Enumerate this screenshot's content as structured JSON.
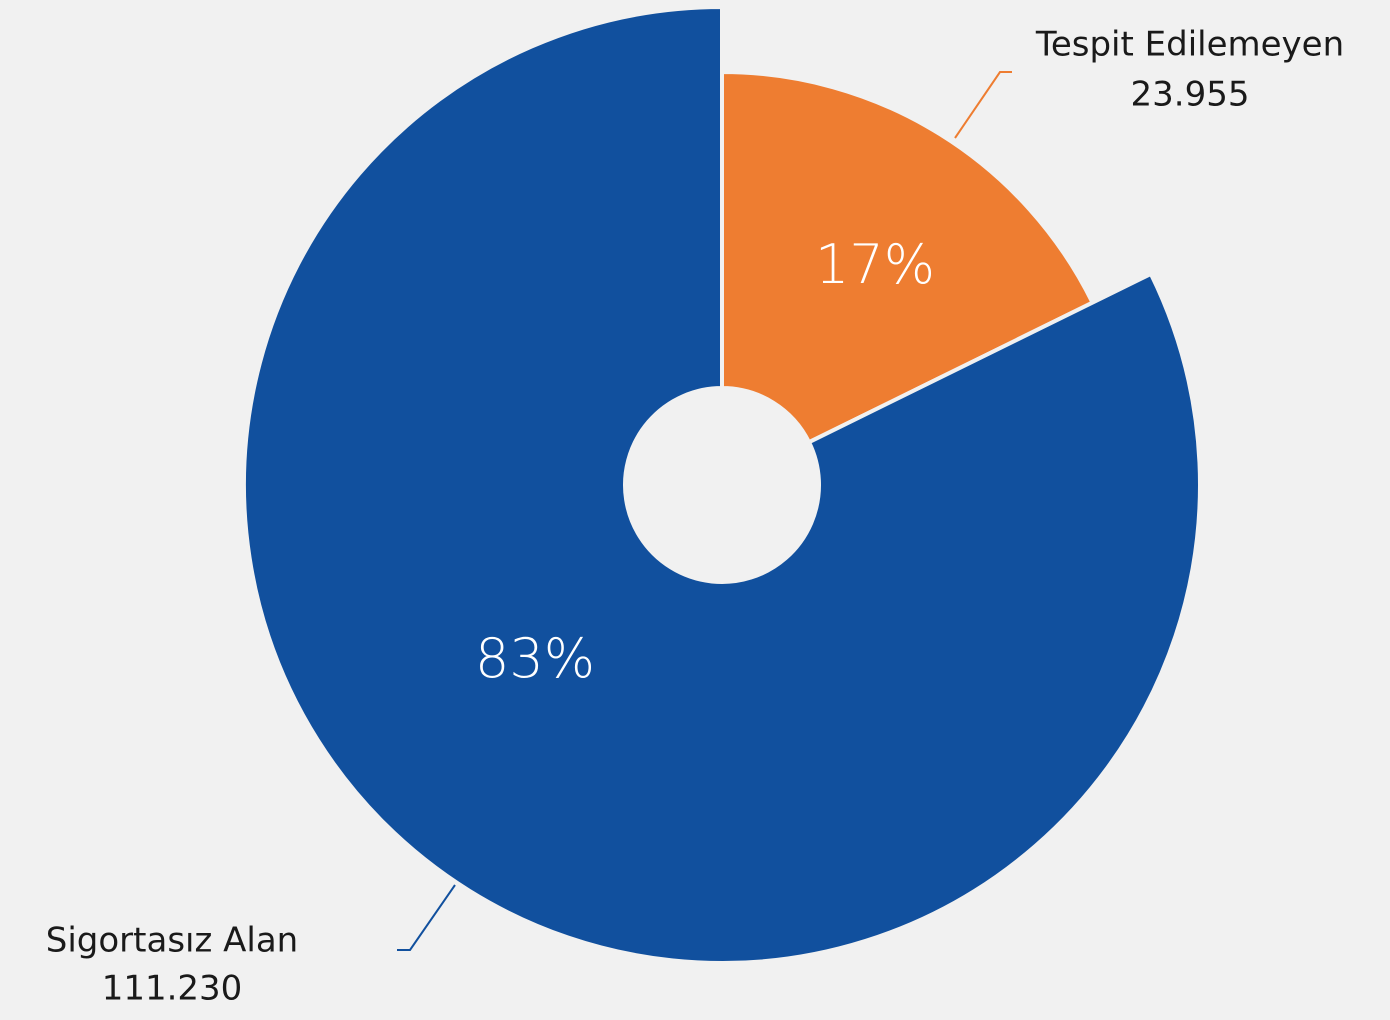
{
  "chart_data": {
    "type": "pie",
    "categories": [
      "Tespit Edilemeyen",
      "Sigortasız Alan"
    ],
    "values": [
      23955,
      111230
    ],
    "value_labels": [
      "23.955",
      "111.230"
    ],
    "shares": [
      17,
      83
    ],
    "share_labels": [
      "17%",
      "83%"
    ],
    "colors": [
      "#ee7d31",
      "#11509e"
    ],
    "donut": true
  }
}
